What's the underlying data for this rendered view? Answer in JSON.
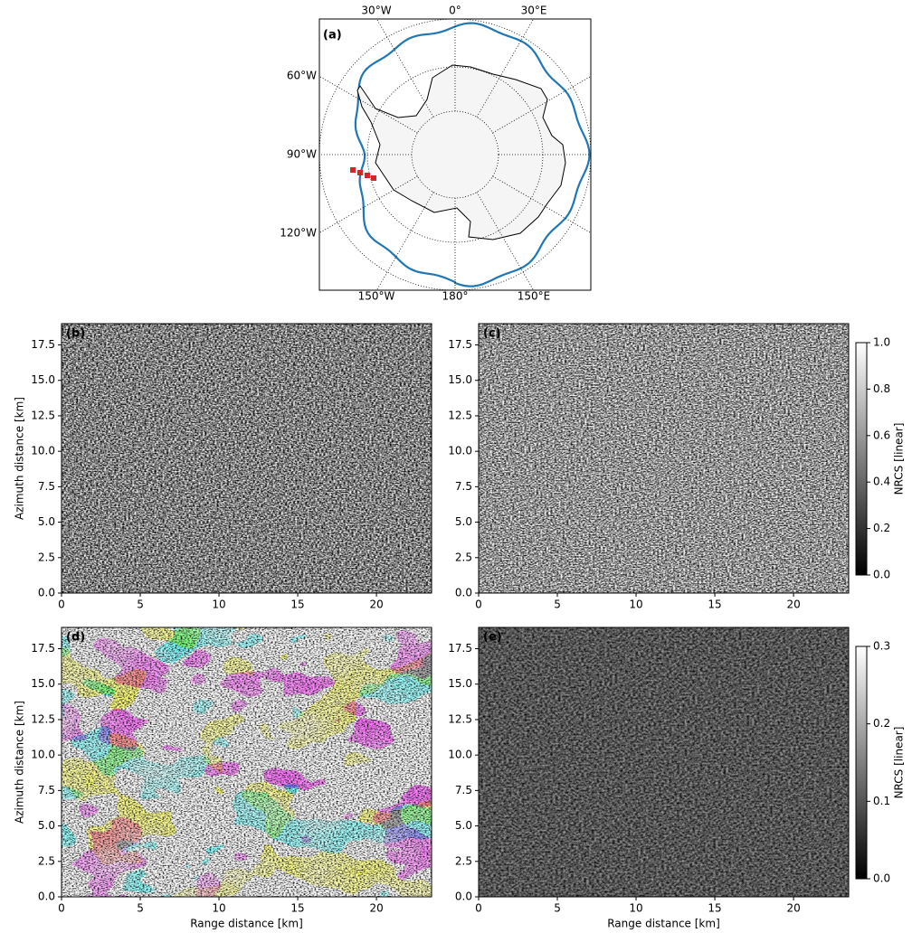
{
  "chart_data": [
    {
      "type": "map",
      "label": "(a)",
      "lon_labels_top": [
        "30°W",
        "0°",
        "30°E"
      ],
      "lon_labels_left": [
        "60°W",
        "90°W",
        "120°W"
      ],
      "lon_labels_bottom": [
        "150°W",
        "180°",
        "150°E"
      ]
    },
    {
      "type": "image",
      "label": "(b)",
      "ylabel": "Azimuth distance [km]",
      "xlim": [
        0,
        23.5
      ],
      "ylim": [
        0,
        19
      ],
      "xticks": [
        0,
        5,
        10,
        15,
        20
      ],
      "yticks": [
        {
          "value": 0,
          "label": "0.0"
        },
        {
          "value": 2.5,
          "label": "2.5"
        },
        {
          "value": 5,
          "label": "5.0"
        },
        {
          "value": 7.5,
          "label": "7.5"
        },
        {
          "value": 10,
          "label": "10.0"
        },
        {
          "value": 12.5,
          "label": "12.5"
        },
        {
          "value": 15,
          "label": "15.0"
        },
        {
          "value": 17.5,
          "label": "17.5"
        }
      ]
    },
    {
      "type": "image",
      "label": "(c)",
      "xlim": [
        0,
        23.5
      ],
      "ylim": [
        0,
        19
      ],
      "xticks": [
        0,
        5,
        10,
        15,
        20
      ],
      "yticks": [
        {
          "value": 0,
          "label": "0.0"
        },
        {
          "value": 2.5,
          "label": "2.5"
        },
        {
          "value": 5,
          "label": "5.0"
        },
        {
          "value": 7.5,
          "label": "7.5"
        },
        {
          "value": 10,
          "label": "10.0"
        },
        {
          "value": 12.5,
          "label": "12.5"
        },
        {
          "value": 15,
          "label": "15.0"
        },
        {
          "value": 17.5,
          "label": "17.5"
        }
      ],
      "colorbar": {
        "label": "NRCS [linear]",
        "clim": [
          0,
          1
        ],
        "ticks": [
          {
            "value": 0,
            "label": "0.0"
          },
          {
            "value": 0.2,
            "label": "0.2"
          },
          {
            "value": 0.4,
            "label": "0.4"
          },
          {
            "value": 0.6,
            "label": "0.6"
          },
          {
            "value": 0.8,
            "label": "0.8"
          },
          {
            "value": 1,
            "label": "1.0"
          }
        ]
      }
    },
    {
      "type": "image",
      "label": "(d)",
      "xlabel": "Range distance [km]",
      "ylabel": "Azimuth distance [km]",
      "xlim": [
        0,
        23.5
      ],
      "ylim": [
        0,
        19
      ],
      "xticks": [
        0,
        5,
        10,
        15,
        20
      ],
      "yticks": [
        {
          "value": 0,
          "label": "0.0"
        },
        {
          "value": 2.5,
          "label": "2.5"
        },
        {
          "value": 5,
          "label": "5.0"
        },
        {
          "value": 7.5,
          "label": "7.5"
        },
        {
          "value": 10,
          "label": "10.0"
        },
        {
          "value": 12.5,
          "label": "12.5"
        },
        {
          "value": 15,
          "label": "15.0"
        },
        {
          "value": 17.5,
          "label": "17.5"
        }
      ]
    },
    {
      "type": "image",
      "label": "(e)",
      "xlabel": "Range distance [km]",
      "xlim": [
        0,
        23.5
      ],
      "ylim": [
        0,
        19
      ],
      "xticks": [
        0,
        5,
        10,
        15,
        20
      ],
      "yticks": [
        {
          "value": 0,
          "label": "0.0"
        },
        {
          "value": 2.5,
          "label": "2.5"
        },
        {
          "value": 5,
          "label": "5.0"
        },
        {
          "value": 7.5,
          "label": "7.5"
        },
        {
          "value": 10,
          "label": "10.0"
        },
        {
          "value": 12.5,
          "label": "12.5"
        },
        {
          "value": 15,
          "label": "15.0"
        },
        {
          "value": 17.5,
          "label": "17.5"
        }
      ],
      "colorbar": {
        "label": "NRCS [linear]",
        "clim": [
          0,
          0.3
        ],
        "ticks": [
          {
            "value": 0,
            "label": "0.0"
          },
          {
            "value": 0.1,
            "label": "0.1"
          },
          {
            "value": 0.2,
            "label": "0.2"
          },
          {
            "value": 0.3,
            "label": "0.3"
          }
        ]
      }
    }
  ]
}
